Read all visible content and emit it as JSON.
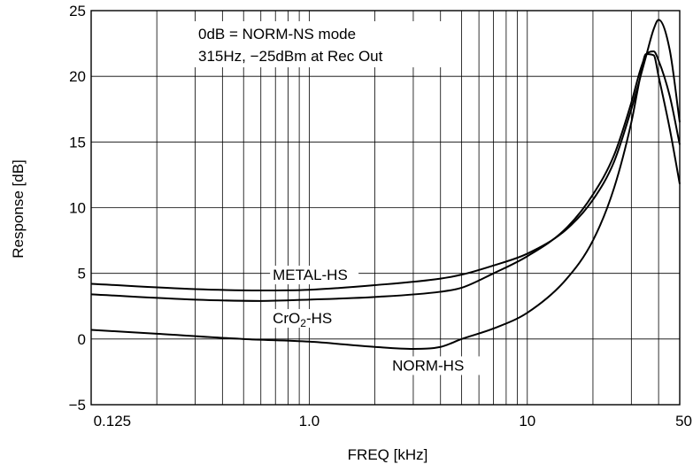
{
  "chart_data": {
    "type": "line",
    "xlabel": "FREQ [kHz]",
    "ylabel": "Response [dB]",
    "x_scale": "log",
    "xlim": [
      0.1,
      50
    ],
    "ylim": [
      -5,
      25
    ],
    "grid": true,
    "x_ticks": [
      {
        "value": 0.125,
        "label": "0.125"
      },
      {
        "value": 1.0,
        "label": "1.0"
      },
      {
        "value": 10,
        "label": "10"
      },
      {
        "value": 50,
        "label": "50"
      }
    ],
    "y_ticks": [
      {
        "value": -5,
        "label": "−5"
      },
      {
        "value": 0,
        "label": "0"
      },
      {
        "value": 5,
        "label": "5"
      },
      {
        "value": 10,
        "label": "10"
      },
      {
        "value": 15,
        "label": "15"
      },
      {
        "value": 20,
        "label": "20"
      },
      {
        "value": 25,
        "label": "25"
      }
    ],
    "annotations": [
      "0dB = NORM-NS mode",
      "315Hz, −25dBm at Rec Out"
    ],
    "series": [
      {
        "name": "METAL-HS",
        "x": [
          0.1,
          0.3,
          0.6,
          1.0,
          2.0,
          4.0,
          5.0,
          7.0,
          10,
          15,
          20,
          25,
          30,
          35,
          38,
          40,
          45,
          50
        ],
        "y": [
          4.2,
          3.8,
          3.7,
          3.75,
          4.1,
          4.6,
          4.9,
          5.6,
          6.5,
          8.3,
          10.6,
          13.5,
          17.5,
          21.5,
          23.6,
          24.3,
          22.0,
          16.5
        ]
      },
      {
        "name": "CrO2-HS",
        "x": [
          0.1,
          0.3,
          0.6,
          1.0,
          2.0,
          4.0,
          5.0,
          7.0,
          10,
          15,
          20,
          25,
          30,
          33,
          35,
          38,
          40,
          45,
          50
        ],
        "y": [
          3.4,
          3.0,
          2.9,
          3.0,
          3.2,
          3.6,
          3.9,
          5.0,
          6.3,
          8.4,
          11.0,
          14.0,
          18.0,
          20.5,
          21.6,
          21.9,
          21.2,
          18.5,
          14.8
        ]
      },
      {
        "name": "NORM-HS",
        "x": [
          0.1,
          0.2,
          0.5,
          1.0,
          2.0,
          3.0,
          4.0,
          5.0,
          7.0,
          10,
          15,
          20,
          25,
          30,
          33,
          35,
          38,
          40,
          45,
          50
        ],
        "y": [
          0.7,
          0.4,
          0.0,
          -0.2,
          -0.6,
          -0.75,
          -0.6,
          0.0,
          0.8,
          2.0,
          4.5,
          7.5,
          11.5,
          16.5,
          20.0,
          21.7,
          21.6,
          20.0,
          16.0,
          11.8
        ]
      }
    ]
  }
}
